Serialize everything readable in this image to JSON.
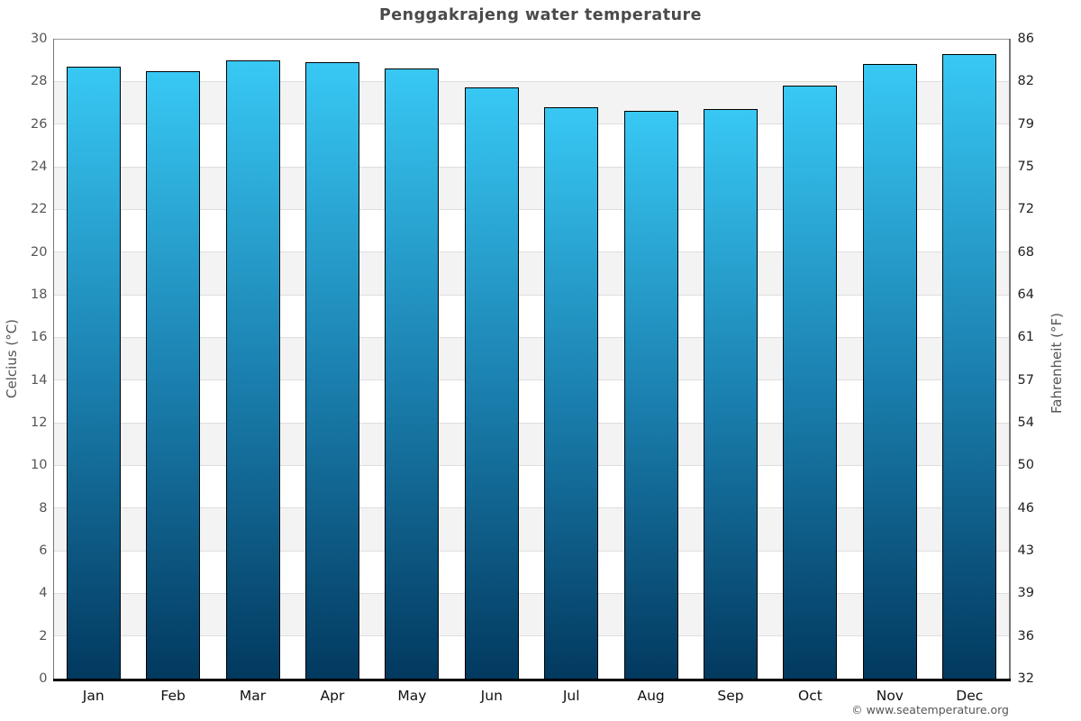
{
  "title": "Penggakrajeng water temperature",
  "footer": "© www.seatemperature.org",
  "axes": {
    "left_label": "Celcius (°C)",
    "right_label": "Fahrenheit (°F)"
  },
  "chart_data": {
    "type": "bar",
    "title": "Penggakrajeng water temperature",
    "categories": [
      "Jan",
      "Feb",
      "Mar",
      "Apr",
      "May",
      "Jun",
      "Jul",
      "Aug",
      "Sep",
      "Oct",
      "Nov",
      "Dec"
    ],
    "values": [
      28.7,
      28.5,
      29.0,
      28.9,
      28.6,
      27.7,
      26.8,
      26.6,
      26.7,
      27.8,
      28.8,
      29.3
    ],
    "xlabel": "",
    "ylabel_left": "Celcius (°C)",
    "ylabel_right": "Fahrenheit (°F)",
    "ylim_celsius": [
      0,
      30
    ],
    "yticks_celsius": [
      0,
      2,
      4,
      6,
      8,
      10,
      12,
      14,
      16,
      18,
      20,
      22,
      24,
      26,
      28,
      30
    ],
    "yticks_fahrenheit_labels": [
      "32",
      "36",
      "39",
      "43",
      "46",
      "50",
      "54",
      "57",
      "61",
      "64",
      "68",
      "72",
      "75",
      "79",
      "82",
      "86"
    ],
    "legend_position": "none",
    "grid": "alternating 2-degree horizontal bands",
    "colors": {
      "bar_gradient_top": "#38C8F4",
      "bar_gradient_mid": "#1B81B0",
      "bar_gradient_bottom": "#02395F",
      "bar_border": "#000000",
      "band_fill": "#f3f3f3",
      "gridline": "#dedede",
      "top_gridline": "#999999",
      "axis_line": "#777777",
      "bottom_axis_line": "#000000",
      "title_text": "#4a4a4a",
      "left_tick_text": "#555555",
      "right_tick_text": "#222222",
      "month_text": "#111111",
      "footer_text": "#555555"
    }
  }
}
